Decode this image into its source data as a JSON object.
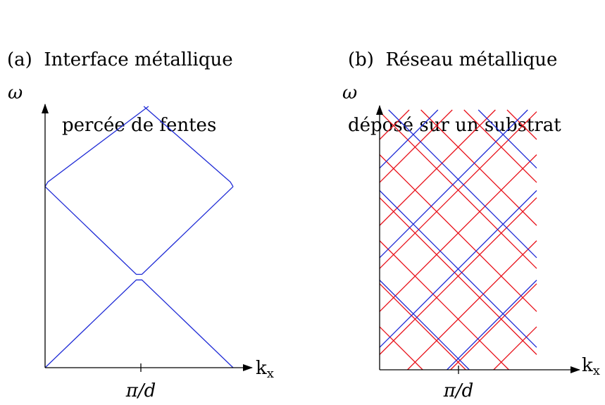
{
  "panels": [
    {
      "id": "a",
      "title_lines": [
        "(a)  Interface métallique",
        "percée de fentes"
      ],
      "y_axis_label": "ω",
      "x_axis_label_main": "k",
      "x_axis_label_sub": "x",
      "x_tick_label": "π/d"
    },
    {
      "id": "b",
      "title_lines": [
        "(b)  Réseau métallique",
        "déposé sur un substrat"
      ],
      "y_axis_label": "ω",
      "x_axis_label_main": "k",
      "x_axis_label_sub": "x",
      "x_tick_label": "π/d"
    }
  ],
  "colors": {
    "axis": "#000000",
    "light_line": "#1f2bd6",
    "substrate_line": "#e8131c"
  },
  "chart_data": [
    {
      "type": "line",
      "panel": "a",
      "description_of_axes": {
        "x": "k_x",
        "y": "omega"
      },
      "xlim": [
        0,
        2
      ],
      "xtick": 1,
      "ylim": [
        0,
        2.8
      ],
      "series": [
        {
          "color": "#1f2bd6",
          "x": [
            0,
            0.97,
            1.0,
            1.03,
            2.0
          ],
          "y": [
            0,
            0.94,
            0.94,
            0.94,
            0
          ]
        },
        {
          "color": "#1f2bd6",
          "x": [
            0,
            0.97,
            1.0,
            1.03,
            2.0
          ],
          "y": [
            1.94,
            1.0,
            1.0,
            1.0,
            1.94
          ]
        },
        {
          "color": "#1f2bd6",
          "x": [
            0,
            0.03,
            1.1
          ],
          "y": [
            1.94,
            1.99,
            2.8
          ]
        },
        {
          "color": "#1f2bd6",
          "x": [
            1.05,
            1.97,
            2.0
          ],
          "y": [
            2.8,
            1.99,
            1.94
          ]
        }
      ]
    },
    {
      "type": "line",
      "panel": "b",
      "description_of_axes": {
        "x": "k_x",
        "y": "omega"
      },
      "xlim": [
        0,
        1.75
      ],
      "xtick": 0.875,
      "ylim": [
        0,
        2.9
      ],
      "light_line_spacing": 1.0,
      "substrate_line_spacing": 0.48,
      "slope": 1.0
    }
  ]
}
